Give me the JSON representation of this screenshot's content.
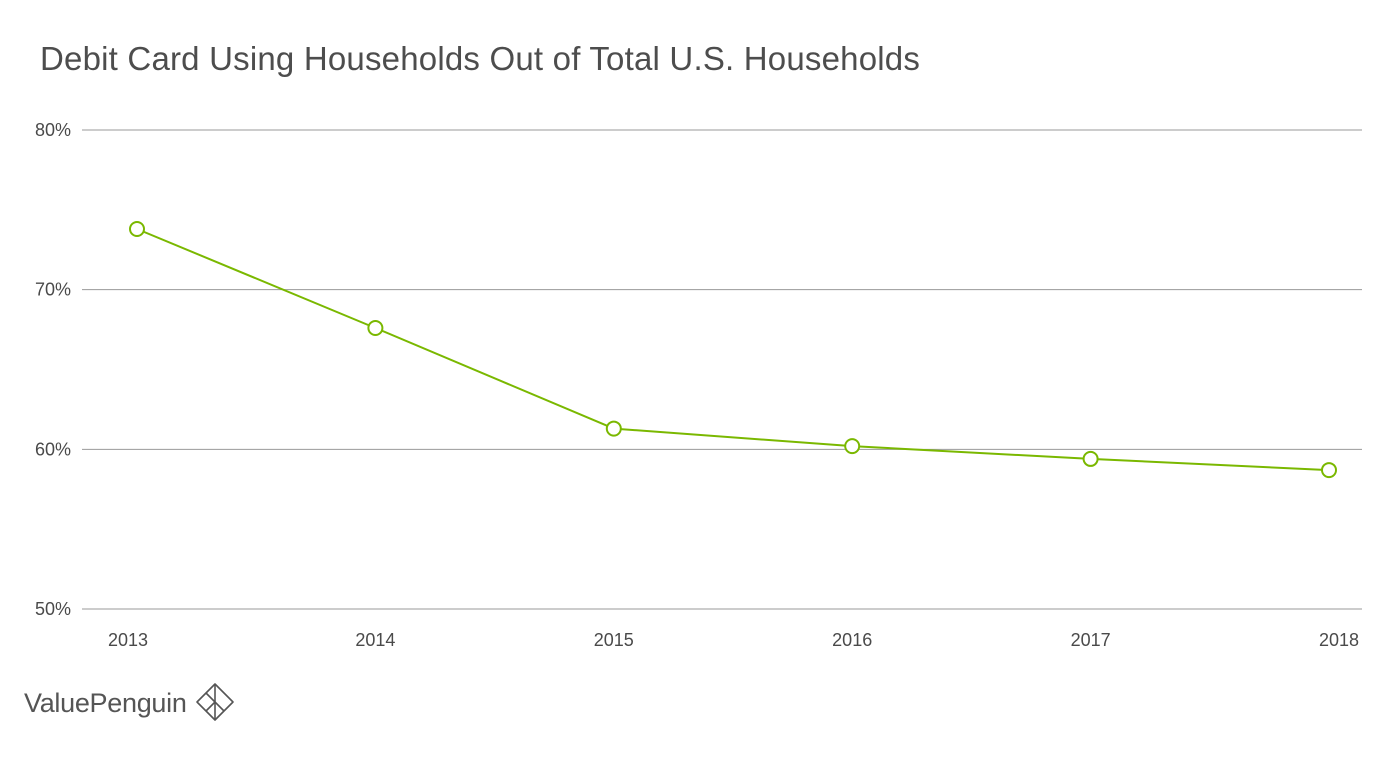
{
  "chart_data": {
    "type": "line",
    "title": "Debit Card Using Households Out of Total U.S. Households",
    "xlabel": "",
    "ylabel": "",
    "categories": [
      "2013",
      "2014",
      "2015",
      "2016",
      "2017",
      "2018"
    ],
    "series": [
      {
        "values": [
          73.8,
          67.6,
          61.3,
          60.2,
          59.4,
          58.7
        ],
        "color": "#7ab800"
      }
    ],
    "ylim": [
      50,
      80
    ],
    "yticks": [
      50,
      60,
      70,
      80
    ],
    "ytick_labels": [
      "50%",
      "60%",
      "70%",
      "80%"
    ],
    "grid": true,
    "legend": "none",
    "gridline_color": "#9a9a9a",
    "marker": "hollow-circle"
  },
  "brand": {
    "name": "ValuePenguin",
    "logo_icon": "valuepenguin-logo-icon"
  }
}
